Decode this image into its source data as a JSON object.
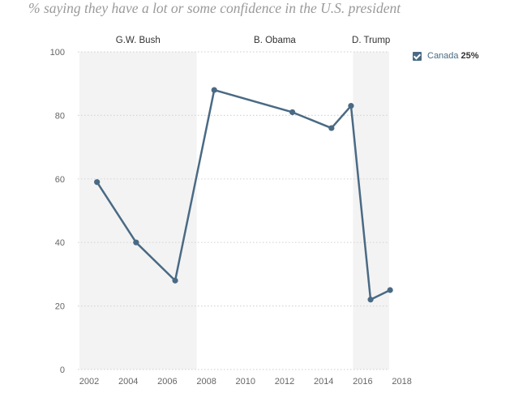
{
  "subtitle": "% saying they have a lot or some confidence in the U.S. president",
  "legend": {
    "name": "Canada",
    "value": "25%",
    "checked": true,
    "color": "#4a6a84"
  },
  "chart_data": {
    "type": "line",
    "title": "% saying they have a lot or some confidence in the U.S. president",
    "xlabel": "",
    "ylabel": "",
    "xlim": [
      2001.5,
      2018.5
    ],
    "ylim": [
      0,
      100
    ],
    "x_ticks": [
      2002,
      2004,
      2006,
      2008,
      2010,
      2012,
      2014,
      2016,
      2018
    ],
    "y_ticks": [
      0,
      20,
      40,
      60,
      80,
      100
    ],
    "grid": true,
    "legend_position": "top-right",
    "eras": [
      {
        "label": "G.W. Bush",
        "start": 2001.5,
        "end": 2007.5,
        "shaded": true
      },
      {
        "label": "B. Obama",
        "start": 2007.5,
        "end": 2015.5,
        "shaded": false
      },
      {
        "label": "D. Trump",
        "start": 2015.5,
        "end": 2017.5,
        "shaded": true
      }
    ],
    "series": [
      {
        "name": "Canada",
        "color": "#4a6a84",
        "x": [
          2002.4,
          2004.4,
          2006.4,
          2008.4,
          2012.4,
          2014.4,
          2015.4,
          2016.4,
          2017.4
        ],
        "values": [
          59,
          40,
          28,
          88,
          81,
          76,
          83,
          22,
          25
        ]
      }
    ]
  }
}
